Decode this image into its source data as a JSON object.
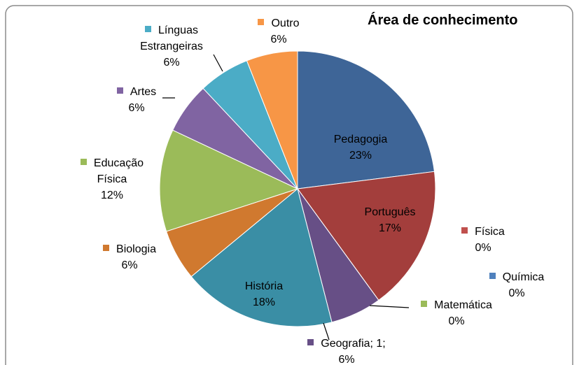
{
  "chart_data": {
    "type": "pie",
    "title": "Área de conhecimento",
    "categories": [
      "Pedagogia",
      "Português",
      "Física",
      "Química",
      "Matemática",
      "Geografia; 1;",
      "História",
      "Biologia",
      "Educação Física",
      "Artes",
      "Línguas Estrangeiras",
      "Outro"
    ],
    "values": [
      23,
      17,
      0,
      0,
      0,
      6,
      18,
      6,
      12,
      6,
      6,
      6
    ],
    "value_labels": [
      "23%",
      "17%",
      "0%",
      "0%",
      "0%",
      "6%",
      "18%",
      "6%",
      "12%",
      "6%",
      "6%",
      "6%"
    ],
    "colors": [
      "#3e6597",
      "#a33e3c",
      "#c0504d",
      "#4f81bd",
      "#9bbb59",
      "#674f86",
      "#3a8ea5",
      "#d0792f",
      "#9bbb59",
      "#8064a2",
      "#4bacc6",
      "#f79646"
    ]
  }
}
